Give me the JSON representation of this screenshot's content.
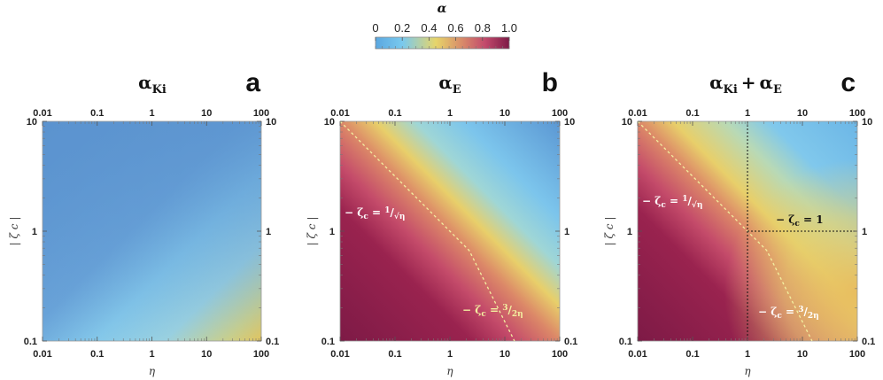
{
  "chart_data": [
    {
      "type": "colorbar",
      "title": "α",
      "tick_labels": [
        "0",
        "0.2",
        "0.4",
        "0.6",
        "0.8",
        "1.0"
      ],
      "range": [
        0,
        1
      ],
      "colors": [
        "#5aa7e0",
        "#79c9ee",
        "#e6d56a",
        "#d88a6a",
        "#c24a6c",
        "#7d1a46"
      ]
    },
    {
      "type": "heatmap",
      "panel": "a",
      "title_main": "α",
      "title_sub": "Ki",
      "xlabel": "η",
      "ylabel": "|ζ_c|",
      "ylabel_text": "| ζ c |",
      "xscale": "log",
      "yscale": "log",
      "xlim": [
        0.01,
        100
      ],
      "ylim": [
        0.1,
        10
      ],
      "x_ticks": [
        "0.01",
        "0.1",
        "1",
        "10",
        "100"
      ],
      "y_ticks": [
        "0.1",
        "1",
        "10"
      ],
      "description": "alpha_Ki: low (~0.05-0.15) nearly everywhere, light blue band along diagonal, rising to ~0.45 at high eta and low |zeta_c|"
    },
    {
      "type": "heatmap",
      "panel": "b",
      "title_main": "α",
      "title_sub": "E",
      "xlabel": "η",
      "ylabel": "|ζ_c|",
      "ylabel_text": "| ζ c |",
      "xscale": "log",
      "yscale": "log",
      "xlim": [
        0.01,
        100
      ],
      "ylim": [
        0.1,
        10
      ],
      "x_ticks": [
        "0.01",
        "0.1",
        "1",
        "10",
        "100"
      ],
      "y_ticks": [
        "0.1",
        "1",
        "10"
      ],
      "annotations": [
        "− ζc = 1/√η",
        "− ζc = 3/2η"
      ],
      "description": "alpha_E: ~1 in lower-left, diagonal gradient band through yellow, ~0.1 in upper-right"
    },
    {
      "type": "heatmap",
      "panel": "c",
      "title_main": "α",
      "title_sub": "Ki",
      "title_plus": "+",
      "title_main2": "α",
      "title_sub2": "E",
      "xlabel": "η",
      "ylabel": "|ζ_c|",
      "ylabel_text": "| ζ c |",
      "xscale": "log",
      "yscale": "log",
      "xlim": [
        0.01,
        100
      ],
      "ylim": [
        0.1,
        10
      ],
      "x_ticks": [
        "0.01",
        "0.1",
        "1",
        "10",
        "100"
      ],
      "y_ticks": [
        "0.1",
        "1",
        "10"
      ],
      "annotations": [
        "− ζc = 1/√η",
        "− ζc = 3/2η",
        "− ζc = 1"
      ],
      "reference_lines": {
        "eta": 1,
        "zeta": 1
      },
      "description": "alpha_Ki + alpha_E: ~1 lower-left, gradient band, lower-right stays yellow/orange due to alpha_Ki"
    }
  ],
  "labels": {
    "letter_a": "a",
    "letter_b": "b",
    "letter_c": "c",
    "cb_title": "α",
    "eq1_lhs": "− ζ",
    "eq1_sub": "c",
    "eq1_eq": " = ",
    "eq1_num": "1",
    "eq1_den": "√η",
    "eq2_lhs": "− ζ",
    "eq2_sub": "c",
    "eq2_eq": " = ",
    "eq2_num": "3",
    "eq2_den": "2η",
    "eq3_lhs": "− ζ",
    "eq3_sub": "c",
    "eq3_eq": " = ",
    "eq3_rhs": "1"
  }
}
